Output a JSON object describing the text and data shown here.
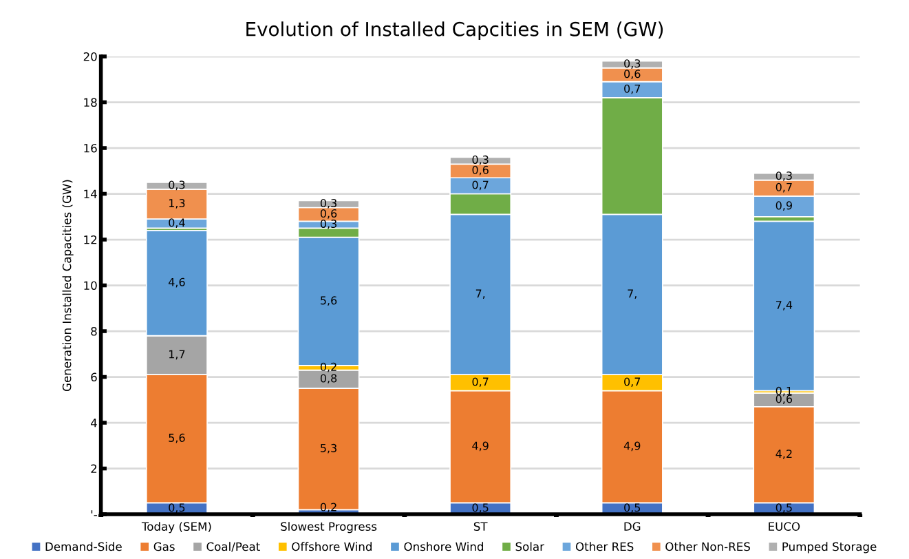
{
  "chart_data": {
    "type": "bar",
    "title": "Evolution of Installed Capcities in SEM (GW)",
    "ylabel": "Generation Installed Capacities (GW)",
    "categories": [
      "Today (SEM)",
      "Slowest Progress",
      "ST",
      "DG",
      "EUCO"
    ],
    "stacked": true,
    "ylim": [
      0,
      20
    ],
    "yticks": [
      {
        "value": 0,
        "label": "'-"
      },
      2,
      4,
      6,
      8,
      10,
      12,
      14,
      16,
      18,
      20
    ],
    "grid": "y",
    "legend": "bottom",
    "series": [
      {
        "name": "Demand-Side",
        "color": "#4472c4",
        "values": [
          0.5,
          0.2,
          0.5,
          0.5,
          0.5
        ],
        "value_labels": [
          "0,5",
          "0,2",
          "0,5",
          "0,5",
          "0,5"
        ]
      },
      {
        "name": "Gas",
        "color": "#ed7d31",
        "values": [
          5.6,
          5.3,
          4.9,
          4.9,
          4.2
        ],
        "value_labels": [
          "5,6",
          "5,3",
          "4,9",
          "4,9",
          "4,2"
        ]
      },
      {
        "name": "Coal/Peat",
        "color": "#a5a5a5",
        "values": [
          1.7,
          0.8,
          0,
          0,
          0.6
        ],
        "value_labels": [
          "1,7",
          "0,8",
          null,
          null,
          "0,6"
        ]
      },
      {
        "name": "Offshore Wind",
        "color": "#ffc000",
        "values": [
          0,
          0.2,
          0.7,
          0.7,
          0.1
        ],
        "value_labels": [
          null,
          "0,2",
          "0,7",
          "0,7",
          "0,1"
        ]
      },
      {
        "name": "Onshore Wind",
        "color": "#5b9bd5",
        "values": [
          4.6,
          5.6,
          7.0,
          7.0,
          7.4
        ],
        "value_labels": [
          "4,6",
          "5,6",
          "7,",
          "7,",
          "7,4"
        ]
      },
      {
        "name": "Solar",
        "color": "#70ad47",
        "values": [
          0.1,
          0.4,
          0.9,
          5.1,
          0.2
        ],
        "value_labels": [
          null,
          null,
          null,
          null,
          null
        ]
      },
      {
        "name": "Other RES",
        "color": "#6ca6dc",
        "values": [
          0.4,
          0.3,
          0.7,
          0.7,
          0.9
        ],
        "value_labels": [
          "0,4",
          "0,3",
          "0,7",
          "0,7",
          "0,9"
        ]
      },
      {
        "name": "Other Non-RES",
        "color": "#f0904e",
        "values": [
          1.3,
          0.6,
          0.6,
          0.6,
          0.7
        ],
        "value_labels": [
          "1,3",
          "0,6",
          "0,6",
          "0,6",
          "0,7"
        ]
      },
      {
        "name": "Pumped Storage",
        "color": "#b0b0b0",
        "values": [
          0.3,
          0.3,
          0.3,
          0.3,
          0.3
        ],
        "value_labels": [
          "0,3",
          "0,3",
          "0,3",
          "0,3",
          "0,3"
        ]
      }
    ]
  }
}
